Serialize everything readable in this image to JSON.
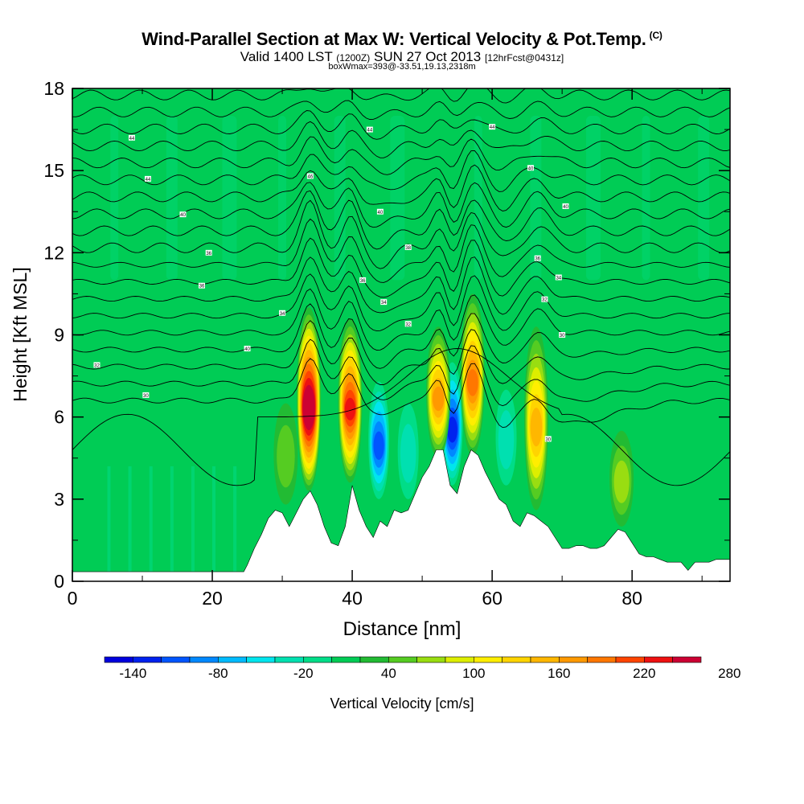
{
  "header": {
    "title": "Wind-Parallel Section at Max W: Vertical Velocity & Pot.Temp.",
    "copyright": "(C)",
    "valid_main": "Valid 1400 LST",
    "valid_utc": "(1200Z)",
    "valid_date": "SUN 27 Oct 2013",
    "forecast": "[12hrFcst@0431z]",
    "boxwmax": "boxWmax=393@-33.51,19.13,2318m"
  },
  "colors": {
    "background_field": "#00dd88",
    "terrain": "#ffffff",
    "contour": "#000000"
  },
  "chart_data": {
    "type": "heatmap",
    "title": "Wind-Parallel Section at Max W: Vertical Velocity & Pot.Temp.",
    "xlabel": "Distance [nm]",
    "ylabel": "Height [Kft MSL]",
    "xlim": [
      0,
      94
    ],
    "ylim": [
      0,
      18
    ],
    "x_ticks": [
      0,
      20,
      40,
      60,
      80
    ],
    "y_ticks": [
      0,
      3,
      6,
      9,
      12,
      15,
      18
    ],
    "colorbar": {
      "label": "Vertical Velocity [cm/s]",
      "min": -160,
      "step": 20,
      "tick_labels": [
        "-140",
        "-80",
        "-20",
        "40",
        "100",
        "160",
        "220",
        "280"
      ],
      "tick_values": [
        -140,
        -80,
        -20,
        40,
        100,
        160,
        220,
        280
      ],
      "colors": [
        "#0000dd",
        "#0022ee",
        "#0055ff",
        "#0088ff",
        "#00bbff",
        "#00e5ee",
        "#00e0b0",
        "#00dd88",
        "#00cc55",
        "#22bb33",
        "#55cc22",
        "#99dd11",
        "#ddee00",
        "#ffee00",
        "#ffd400",
        "#ffb700",
        "#ff9900",
        "#ff7700",
        "#ff4400",
        "#ee1111",
        "#cc0033"
      ]
    },
    "terrain_profile": {
      "x": [
        0,
        24.5,
        25,
        26,
        27,
        28,
        29,
        30,
        31,
        32,
        33,
        34,
        35,
        36,
        37,
        38,
        39,
        40,
        41,
        42,
        43,
        44,
        45,
        46,
        47,
        48,
        49,
        50,
        51,
        52,
        53,
        54,
        55,
        56,
        57,
        58,
        59,
        60,
        61,
        62,
        63,
        64,
        65,
        66,
        67,
        68,
        69,
        70,
        71,
        72,
        73,
        74,
        75,
        76,
        77,
        78,
        79,
        80,
        81,
        82,
        83,
        84,
        85,
        86,
        87,
        88,
        89,
        90,
        91,
        92,
        93,
        94
      ],
      "y": [
        0.35,
        0.35,
        0.6,
        1.2,
        1.7,
        2.3,
        2.6,
        2.5,
        2.0,
        2.5,
        3.0,
        3.3,
        2.8,
        2.0,
        1.4,
        1.3,
        2.0,
        3.5,
        2.6,
        2.0,
        1.6,
        2.2,
        2.0,
        2.6,
        2.5,
        2.6,
        3.2,
        3.8,
        4.2,
        4.8,
        4.8,
        3.5,
        3.2,
        4.2,
        4.8,
        4.6,
        4.0,
        3.5,
        3.0,
        2.8,
        2.2,
        2.0,
        2.5,
        2.4,
        2.2,
        2.0,
        1.6,
        1.2,
        1.2,
        1.3,
        1.3,
        1.2,
        1.2,
        1.3,
        1.6,
        1.9,
        1.8,
        1.4,
        1.0,
        0.9,
        0.9,
        0.8,
        0.7,
        0.7,
        0.7,
        0.4,
        0.7,
        0.7,
        0.7,
        0.8,
        0.8,
        0.8
      ]
    },
    "updrafts": [
      {
        "x": 33.8,
        "y_top": 10.0,
        "y_bottom": 3.3,
        "peak": 290
      },
      {
        "x": 39.7,
        "y_top": 9.6,
        "y_bottom": 3.6,
        "peak": 230
      },
      {
        "x": 52.3,
        "y_top": 9.3,
        "y_bottom": 4.5,
        "peak": 170
      },
      {
        "x": 57.2,
        "y_top": 10.5,
        "y_bottom": 4.6,
        "peak": 200
      },
      {
        "x": 66.3,
        "y_top": 9.3,
        "y_bottom": 2.6,
        "peak": 160
      },
      {
        "x": 30.5,
        "y_top": 6.5,
        "y_bottom": 2.8,
        "peak": 60
      },
      {
        "x": 78.5,
        "y_top": 5.5,
        "y_bottom": 2.0,
        "peak": 70
      }
    ],
    "downdrafts": [
      {
        "x": 43.8,
        "y_top": 7.3,
        "y_bottom": 3.0,
        "peak": -110
      },
      {
        "x": 54.3,
        "y_top": 8.0,
        "y_bottom": 3.5,
        "peak": -145
      },
      {
        "x": 62.0,
        "y_top": 7.0,
        "y_bottom": 3.5,
        "peak": -40
      },
      {
        "x": 48.0,
        "y_top": 6.5,
        "y_bottom": 3.0,
        "peak": -40
      }
    ],
    "isentrope_labels": [
      {
        "x": 8.5,
        "y": 16.2,
        "text": "44"
      },
      {
        "x": 10.8,
        "y": 14.7,
        "text": "44"
      },
      {
        "x": 15.8,
        "y": 13.4,
        "text": "40"
      },
      {
        "x": 19.5,
        "y": 12.0,
        "text": "36"
      },
      {
        "x": 18.5,
        "y": 10.8,
        "text": "36"
      },
      {
        "x": 30.0,
        "y": 9.8,
        "text": "34"
      },
      {
        "x": 25.0,
        "y": 8.5,
        "text": "40"
      },
      {
        "x": 3.5,
        "y": 7.9,
        "text": "32"
      },
      {
        "x": 10.5,
        "y": 6.8,
        "text": "30"
      },
      {
        "x": 34.0,
        "y": 14.8,
        "text": "46"
      },
      {
        "x": 42.5,
        "y": 16.5,
        "text": "44"
      },
      {
        "x": 44.0,
        "y": 13.5,
        "text": "40"
      },
      {
        "x": 48.0,
        "y": 12.2,
        "text": "38"
      },
      {
        "x": 41.5,
        "y": 11.0,
        "text": "36"
      },
      {
        "x": 44.5,
        "y": 10.2,
        "text": "34"
      },
      {
        "x": 48.0,
        "y": 9.4,
        "text": "32"
      },
      {
        "x": 60.0,
        "y": 16.6,
        "text": "44"
      },
      {
        "x": 65.5,
        "y": 15.1,
        "text": "40"
      },
      {
        "x": 70.5,
        "y": 13.7,
        "text": "40"
      },
      {
        "x": 66.5,
        "y": 11.8,
        "text": "36"
      },
      {
        "x": 69.5,
        "y": 11.1,
        "text": "34"
      },
      {
        "x": 67.5,
        "y": 10.3,
        "text": "32"
      },
      {
        "x": 70.0,
        "y": 9.0,
        "text": "30"
      },
      {
        "x": 68.0,
        "y": 5.2,
        "text": "30"
      }
    ]
  }
}
